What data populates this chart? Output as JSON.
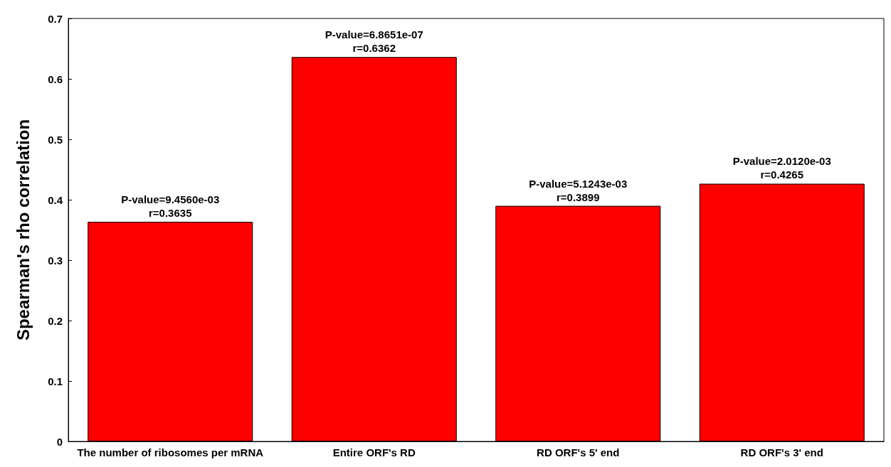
{
  "chart_data": {
    "type": "bar",
    "ylabel": "Spearman's rho correlation",
    "categories": [
      "The number of ribosomes per mRNA",
      "Entire ORF's RD",
      "RD ORF's 5' end",
      "RD ORF's 3' end"
    ],
    "values": [
      0.3635,
      0.6362,
      0.3899,
      0.4265
    ],
    "color": "#ff0000",
    "value_labels": [
      "P-value=9.4560e-03\nr=0.3635",
      "P-value=6.8651e-07\nr=0.6362",
      "P-value=5.1243e-03\nr=0.3899",
      "P-value=2.0120e-03\nr=0.4265"
    ],
    "ylim": [
      0,
      0.7
    ],
    "yticks": [
      0,
      0.1,
      0.2,
      0.3,
      0.4,
      0.5,
      0.6,
      0.7
    ],
    "grid": false
  }
}
